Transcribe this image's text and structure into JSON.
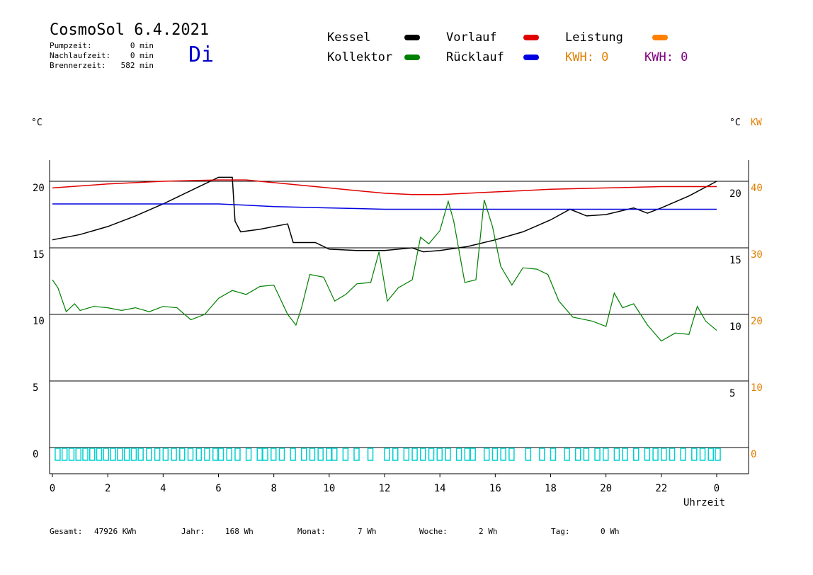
{
  "header": {
    "title": "CosmoSol 6.4.2021",
    "weekday": "Di",
    "stats": [
      {
        "label": "Pumpzeit:",
        "value": "0 min"
      },
      {
        "label": "Nachlaufzeit:",
        "value": "0 min"
      },
      {
        "label": "Brennerzeit:",
        "value": "582 min"
      }
    ]
  },
  "legend": {
    "kessel": {
      "label": "Kessel",
      "color": "#000000"
    },
    "kollektor": {
      "label": "Kollektor",
      "color": "#008000"
    },
    "vorlauf": {
      "label": "Vorlauf",
      "color": "#e00000"
    },
    "ruecklauf": {
      "label": "Rücklauf",
      "color": "#0000e0"
    },
    "leistung": {
      "label": "Leistung",
      "color": "#ff8000"
    },
    "kwh1": {
      "label": "KWH: 0",
      "color": "#e08000"
    },
    "kwh2": {
      "label": "KWH: 0",
      "color": "#800080"
    }
  },
  "axes": {
    "left_unit": "°C",
    "right_unit": "°C",
    "right_unit2": "KW",
    "xlabel": "Uhrzeit"
  },
  "footer": {
    "gesamt_label": "Gesamt:",
    "gesamt_value": "47926 KWh",
    "jahr_label": "Jahr:",
    "jahr_value": "168 Wh",
    "monat_label": "Monat:",
    "monat_value": "7 Wh",
    "woche_label": "Woche:",
    "woche_value": "2 Wh",
    "tag_label": "Tag:",
    "tag_value": "0 Wh"
  },
  "chart_data": {
    "type": "line",
    "xlim": [
      0,
      24
    ],
    "ylim": [
      -1.5,
      22
    ],
    "x_ticks": [
      "0",
      "2",
      "4",
      "6",
      "8",
      "10",
      "12",
      "14",
      "16",
      "18",
      "20",
      "22",
      "0"
    ],
    "y_left_ticks": [
      "0",
      "5",
      "10",
      "15",
      "20"
    ],
    "y_right_ticks": [
      "5",
      "10",
      "15",
      "20"
    ],
    "y_right2_ticks": [
      "0",
      "10",
      "20",
      "30",
      "40"
    ],
    "grid": "horizontal",
    "series": [
      {
        "name": "Kessel",
        "color": "#000000",
        "points": [
          [
            0,
            15.6
          ],
          [
            1,
            16.0
          ],
          [
            2,
            16.6
          ],
          [
            3,
            17.4
          ],
          [
            4,
            18.3
          ],
          [
            5,
            19.3
          ],
          [
            6,
            20.3
          ],
          [
            6.5,
            20.3
          ],
          [
            6.6,
            17.0
          ],
          [
            6.8,
            16.2
          ],
          [
            7.5,
            16.4
          ],
          [
            8.5,
            16.8
          ],
          [
            8.7,
            15.4
          ],
          [
            9.5,
            15.4
          ],
          [
            10,
            14.9
          ],
          [
            11,
            14.8
          ],
          [
            12,
            14.8
          ],
          [
            13,
            15.0
          ],
          [
            13.4,
            14.7
          ],
          [
            14,
            14.8
          ],
          [
            15,
            15.1
          ],
          [
            16,
            15.6
          ],
          [
            17,
            16.2
          ],
          [
            18,
            17.1
          ],
          [
            18.7,
            17.9
          ],
          [
            19.3,
            17.4
          ],
          [
            20,
            17.5
          ],
          [
            21,
            18.0
          ],
          [
            21.5,
            17.6
          ],
          [
            22,
            18.0
          ],
          [
            23,
            18.9
          ],
          [
            24,
            20
          ]
        ]
      },
      {
        "name": "Vorlauf",
        "color": "#e00000",
        "points": [
          [
            0,
            19.5
          ],
          [
            2,
            19.8
          ],
          [
            4,
            20.0
          ],
          [
            6,
            20.1
          ],
          [
            7,
            20.1
          ],
          [
            8,
            19.9
          ],
          [
            10,
            19.5
          ],
          [
            11,
            19.3
          ],
          [
            12,
            19.1
          ],
          [
            13,
            19.0
          ],
          [
            14,
            19.0
          ],
          [
            15,
            19.1
          ],
          [
            16,
            19.2
          ],
          [
            17,
            19.3
          ],
          [
            18,
            19.4
          ],
          [
            20,
            19.5
          ],
          [
            22,
            19.6
          ],
          [
            24,
            19.6
          ]
        ]
      },
      {
        "name": "Rücklauf",
        "color": "#0000e0",
        "points": [
          [
            0,
            18.3
          ],
          [
            2,
            18.3
          ],
          [
            4,
            18.3
          ],
          [
            6,
            18.3
          ],
          [
            7,
            18.2
          ],
          [
            8,
            18.1
          ],
          [
            10,
            18.0
          ],
          [
            12,
            17.9
          ],
          [
            14,
            17.9
          ],
          [
            16,
            17.9
          ],
          [
            18,
            17.9
          ],
          [
            20,
            17.9
          ],
          [
            22,
            17.9
          ],
          [
            24,
            17.9
          ]
        ]
      },
      {
        "name": "Kollektor",
        "color": "#008000",
        "points": [
          [
            0,
            12.6
          ],
          [
            0.2,
            12.0
          ],
          [
            0.5,
            10.2
          ],
          [
            0.8,
            10.8
          ],
          [
            1,
            10.3
          ],
          [
            1.5,
            10.6
          ],
          [
            2,
            10.5
          ],
          [
            2.5,
            10.3
          ],
          [
            3,
            10.5
          ],
          [
            3.5,
            10.2
          ],
          [
            4,
            10.6
          ],
          [
            4.5,
            10.5
          ],
          [
            5,
            9.6
          ],
          [
            5.5,
            10.0
          ],
          [
            6,
            11.2
          ],
          [
            6.5,
            11.8
          ],
          [
            7,
            11.5
          ],
          [
            7.5,
            12.1
          ],
          [
            8,
            12.2
          ],
          [
            8.5,
            10.0
          ],
          [
            8.8,
            9.2
          ],
          [
            9,
            10.5
          ],
          [
            9.3,
            13.0
          ],
          [
            9.8,
            12.8
          ],
          [
            10.2,
            11.0
          ],
          [
            10.6,
            11.5
          ],
          [
            11,
            12.3
          ],
          [
            11.5,
            12.4
          ],
          [
            11.8,
            14.7
          ],
          [
            12.1,
            11.0
          ],
          [
            12.5,
            12.0
          ],
          [
            13,
            12.6
          ],
          [
            13.3,
            15.8
          ],
          [
            13.6,
            15.3
          ],
          [
            14,
            16.3
          ],
          [
            14.3,
            18.5
          ],
          [
            14.5,
            17.0
          ],
          [
            14.9,
            12.4
          ],
          [
            15.3,
            12.6
          ],
          [
            15.6,
            18.6
          ],
          [
            15.9,
            16.6
          ],
          [
            16.2,
            13.6
          ],
          [
            16.6,
            12.2
          ],
          [
            17,
            13.5
          ],
          [
            17.5,
            13.4
          ],
          [
            17.9,
            13.0
          ],
          [
            18.3,
            11.0
          ],
          [
            18.8,
            9.8
          ],
          [
            19.5,
            9.5
          ],
          [
            20,
            9.1
          ],
          [
            20.3,
            11.6
          ],
          [
            20.6,
            10.5
          ],
          [
            21,
            10.8
          ],
          [
            21.5,
            9.2
          ],
          [
            22,
            8.0
          ],
          [
            22.5,
            8.6
          ],
          [
            23,
            8.5
          ],
          [
            23.3,
            10.6
          ],
          [
            23.6,
            9.5
          ],
          [
            24,
            8.8
          ]
        ]
      }
    ],
    "pump_marker_hours": [
      0.1,
      0.35,
      0.6,
      0.85,
      1.1,
      1.35,
      1.6,
      1.85,
      2.1,
      2.35,
      2.6,
      2.85,
      3.1,
      3.4,
      3.7,
      4.0,
      4.3,
      4.6,
      4.9,
      5.2,
      5.5,
      5.8,
      6.0,
      6.3,
      6.6,
      7.0,
      7.4,
      7.6,
      7.9,
      8.2,
      8.6,
      9.0,
      9.3,
      9.6,
      9.9,
      10.1,
      10.5,
      10.9,
      11.4,
      12.0,
      12.3,
      12.7,
      13.0,
      13.3,
      13.6,
      13.9,
      14.2,
      14.6,
      14.9,
      15.1,
      15.6,
      15.9,
      16.2,
      16.5,
      17.1,
      17.6,
      18.0,
      18.5,
      18.9,
      19.2,
      19.6,
      19.9,
      20.3,
      20.6,
      21.0,
      21.4,
      21.7,
      22.0,
      22.3,
      22.7,
      23.1,
      23.4,
      23.7,
      23.95
    ]
  }
}
